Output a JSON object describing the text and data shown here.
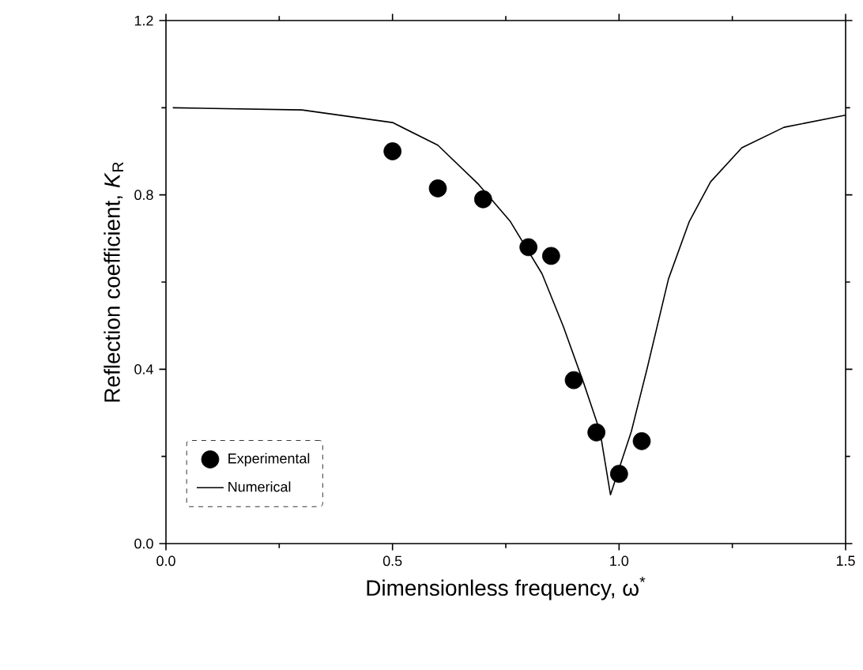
{
  "chart_data": {
    "type": "line",
    "xlabel": "Dimensionless frequency, ω$^{*}$",
    "ylabel": "Reflection coefficient, *K*$_{R}$",
    "xlim": [
      0,
      1.5
    ],
    "ylim": [
      0,
      1.2
    ],
    "xticks": [
      {
        "value": 0,
        "label": "0.0"
      },
      {
        "value": 0.5,
        "label": "0.5"
      },
      {
        "value": 1.0,
        "label": "1.0"
      },
      {
        "value": 1.5,
        "label": "1.5"
      }
    ],
    "yticks": [
      {
        "value": 0,
        "label": "0.0"
      },
      {
        "value": 0.4,
        "label": "0.4"
      },
      {
        "value": 0.8,
        "label": "0.8"
      },
      {
        "value": 1.2,
        "label": "1.2"
      }
    ],
    "legend": "bottom left",
    "grid": false,
    "series": [
      {
        "name": "Experimental",
        "type": "scatter",
        "marker": "circle",
        "color": "#000000",
        "x": [
          0.5,
          0.6,
          0.7,
          0.8,
          0.85,
          0.9,
          0.95,
          1.0,
          1.05
        ],
        "values": [
          0.9,
          0.815,
          0.79,
          0.68,
          0.66,
          0.375,
          0.255,
          0.16,
          0.235
        ]
      },
      {
        "name": "Numerical",
        "marker": "none",
        "line_style": "solid",
        "color": "#000000",
        "x": [
          0.015,
          0.3,
          0.5,
          0.6,
          0.69,
          0.76,
          0.83,
          0.877,
          0.923,
          0.958,
          0.981,
          1.027,
          1.062,
          1.109,
          1.155,
          1.202,
          1.271,
          1.364,
          1.5
        ],
        "values": [
          1.0,
          0.995,
          0.966,
          0.914,
          0.824,
          0.739,
          0.619,
          0.498,
          0.365,
          0.257,
          0.112,
          0.257,
          0.402,
          0.607,
          0.739,
          0.83,
          0.908,
          0.955,
          0.983
        ]
      }
    ]
  }
}
